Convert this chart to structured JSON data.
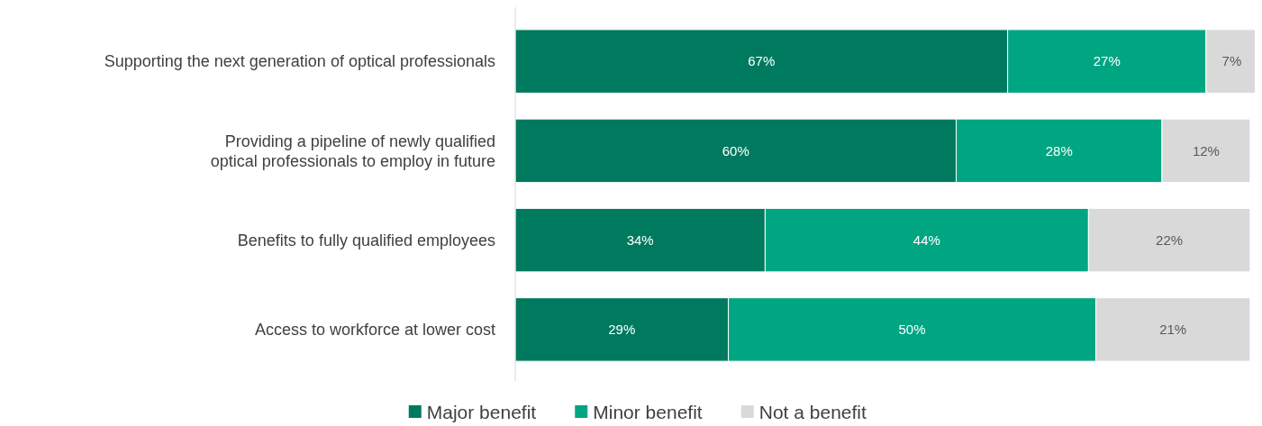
{
  "chart_data": {
    "type": "bar",
    "orientation": "horizontal",
    "stacked": true,
    "legend": "bottom",
    "tick_labels": "y",
    "categories": [
      "Supporting the next generation of optical professionals",
      "Providing a pipeline of newly qualified\noptical professionals to employ in future",
      "Benefits to fully qualified employees",
      "Access to workforce at lower cost"
    ],
    "series": [
      {
        "name": "Major benefit",
        "color": "#007a5e",
        "values": [
          67,
          60,
          34,
          29
        ],
        "value_labels": [
          "67%",
          "60%",
          "34%",
          "29%"
        ]
      },
      {
        "name": "Minor benefit",
        "color": "#00a582",
        "values": [
          27,
          28,
          44,
          50
        ],
        "value_labels": [
          "27%",
          "28%",
          "44%",
          "50%"
        ]
      },
      {
        "name": "Not a benefit",
        "color": "#d9d9d9",
        "values": [
          7,
          12,
          22,
          21
        ],
        "value_labels": [
          "7%",
          "12%",
          "22%",
          "21%"
        ]
      }
    ]
  }
}
